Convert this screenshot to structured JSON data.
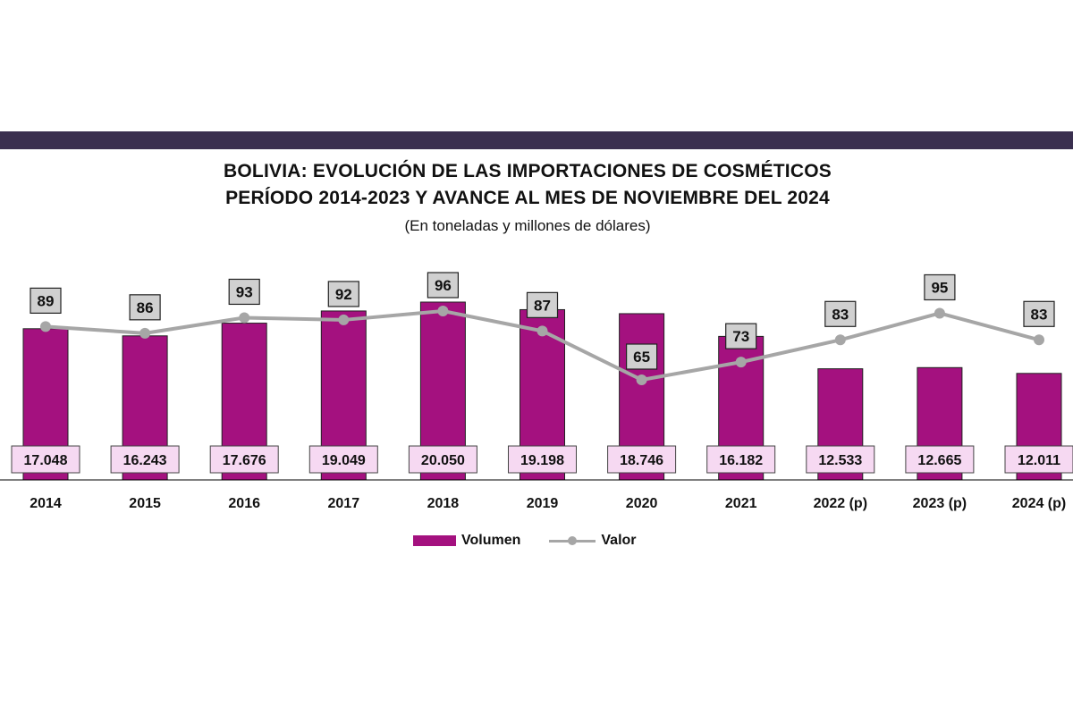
{
  "header": {
    "title_line1": "BOLIVIA: EVOLUCIÓN DE LAS IMPORTACIONES DE COSMÉTICOS",
    "title_line2": "PERÍODO 2014-2023 Y AVANCE AL MES DE NOVIEMBRE DEL 2024",
    "subtitle": "(En toneladas y millones de dólares)"
  },
  "legend": {
    "volume_label": "Volumen",
    "value_label": "Valor"
  },
  "colors": {
    "band": "#3a2f4f",
    "bar": "#a4117f",
    "line": "#a6a6a6",
    "volume_label_bg": "#f6d9f2",
    "value_label_bg": "#d0d0d0"
  },
  "chart_data": {
    "type": "bar",
    "categories": [
      "2014",
      "2015",
      "2016",
      "2017",
      "2018",
      "2019",
      "2020",
      "2021",
      "2022 (p)",
      "2023 (p)",
      "2024 (p)"
    ],
    "series": [
      {
        "name": "Volumen",
        "type": "bar",
        "values": [
          17.048,
          16.243,
          17.676,
          19.049,
          20.05,
          19.198,
          18.746,
          16.182,
          12.533,
          12.665,
          12.011
        ],
        "labels": [
          "17.048",
          "16.243",
          "17.676",
          "19.049",
          "20.050",
          "19.198",
          "18.746",
          "16.182",
          "12.533",
          "12.665",
          "12.011"
        ]
      },
      {
        "name": "Valor",
        "type": "line",
        "values": [
          89,
          86,
          93,
          92,
          96,
          87,
          65,
          73,
          83,
          95,
          83
        ],
        "labels": [
          "89",
          "86",
          "93",
          "92",
          "96",
          "87",
          "65",
          "73",
          "83",
          "95",
          "83"
        ]
      }
    ],
    "legend": "bottom",
    "grid": false
  }
}
